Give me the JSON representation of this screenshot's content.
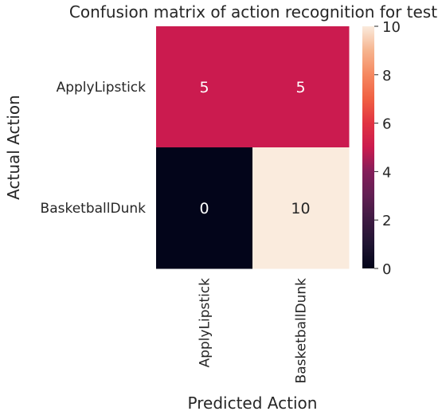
{
  "chart_data": {
    "type": "heatmap",
    "title": "Confusion matrix of action recognition for test",
    "xlabel": "Predicted Action",
    "ylabel": "Actual Action",
    "x_categories": [
      "ApplyLipstick",
      "BasketballDunk"
    ],
    "y_categories": [
      "ApplyLipstick",
      "BasketballDunk"
    ],
    "values": [
      [
        5,
        5
      ],
      [
        0,
        10
      ]
    ],
    "colorbar": {
      "range": [
        0,
        10
      ],
      "ticks": [
        0,
        2,
        4,
        6,
        8,
        10
      ],
      "colormap": "rocket"
    },
    "annotations": true
  }
}
